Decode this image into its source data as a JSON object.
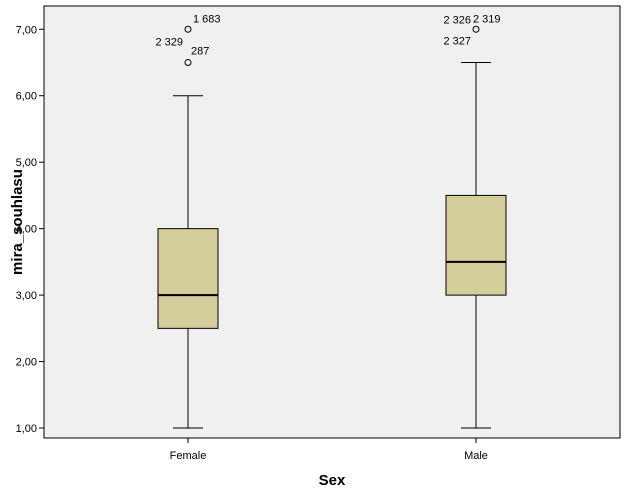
{
  "chart_data": {
    "type": "boxplot",
    "xlabel": "Sex",
    "ylabel": "mira_souhlasu",
    "ylim": [
      0.85,
      7.35
    ],
    "yticks": [
      1,
      2,
      3,
      4,
      5,
      6,
      7
    ],
    "ytick_labels": [
      "1,00",
      "2,00",
      "3,00",
      "4,00",
      "5,00",
      "6,00",
      "7,00"
    ],
    "categories": [
      "Female",
      "Male"
    ],
    "boxes": [
      {
        "category": "Female",
        "whisker_low": 1.0,
        "q1": 2.5,
        "median": 3.0,
        "q3": 4.0,
        "whisker_high": 6.0,
        "outliers": [
          {
            "value": 7.0,
            "labels": [
              "1 683"
            ]
          },
          {
            "value": 6.5,
            "labels": [
              "2 329",
              "287"
            ]
          }
        ]
      },
      {
        "category": "Male",
        "whisker_low": 1.0,
        "q1": 3.0,
        "median": 3.5,
        "q3": 4.5,
        "whisker_high": 6.5,
        "outliers": [
          {
            "value": 7.0,
            "labels": [
              "2 326",
              "2 319",
              "2 327"
            ]
          }
        ]
      }
    ],
    "colors": {
      "plot_background": "#f0f0f0",
      "box_fill": "#d3ce9b",
      "line": "#000000"
    },
    "grid": false
  }
}
